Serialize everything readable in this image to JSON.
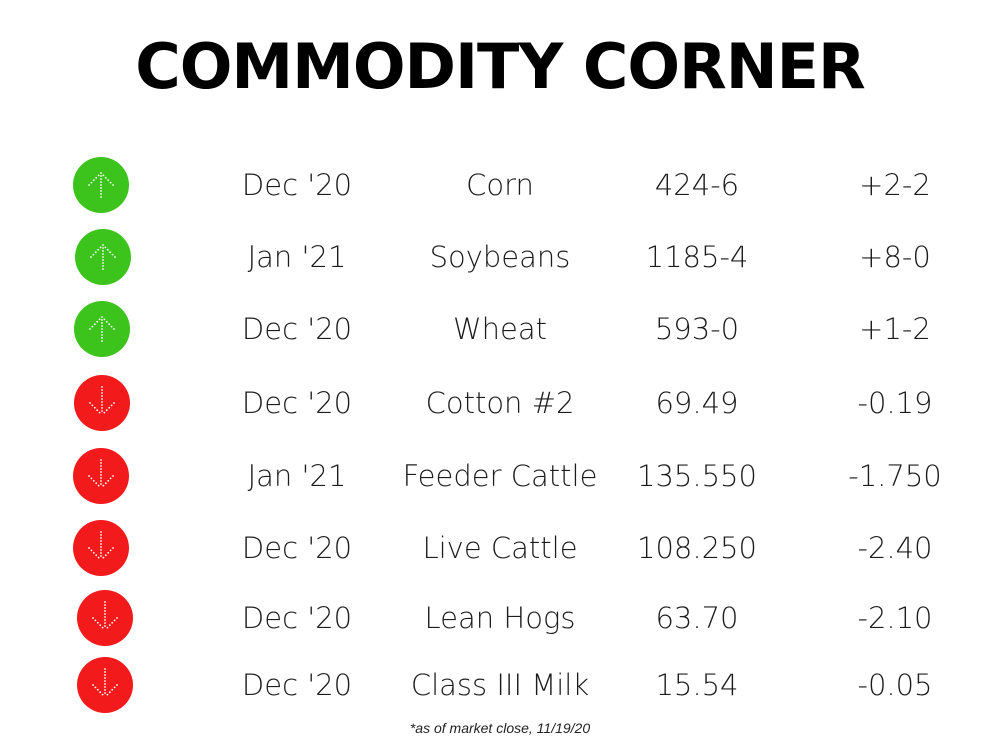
{
  "title": "COMMODITY CORNER",
  "colors": {
    "up": "#3cc31c",
    "down": "#f21a1a",
    "arrow": "#ffffff"
  },
  "rows": [
    {
      "direction": "up",
      "icon": "arrow-up-icon",
      "month": "Dec '20",
      "commodity": "Corn",
      "price": "424-6",
      "change": "+2-2"
    },
    {
      "direction": "up",
      "icon": "arrow-up-icon",
      "month": "Jan '21",
      "commodity": "Soybeans",
      "price": "1185-4",
      "change": "+8-0"
    },
    {
      "direction": "up",
      "icon": "arrow-up-icon",
      "month": "Dec '20",
      "commodity": "Wheat",
      "price": "593-0",
      "change": "+1-2"
    },
    {
      "direction": "down",
      "icon": "arrow-down-icon",
      "month": "Dec '20",
      "commodity": "Cotton #2",
      "price": "69.49",
      "change": "-0.19"
    },
    {
      "direction": "down",
      "icon": "arrow-down-icon",
      "month": "Jan '21",
      "commodity": "Feeder Cattle",
      "price": "135.550",
      "change": "-1.750"
    },
    {
      "direction": "down",
      "icon": "arrow-down-icon",
      "month": "Dec '20",
      "commodity": "Live Cattle",
      "price": "108.250",
      "change": "-2.40"
    },
    {
      "direction": "down",
      "icon": "arrow-down-icon",
      "month": "Dec '20",
      "commodity": "Lean Hogs",
      "price": "63.70",
      "change": "-2.10"
    },
    {
      "direction": "down",
      "icon": "arrow-down-icon",
      "month": "Dec '20",
      "commodity": "Class III Milk",
      "price": "15.54",
      "change": "-0.05"
    }
  ],
  "footnote": "*as of market close, 11/19/20"
}
